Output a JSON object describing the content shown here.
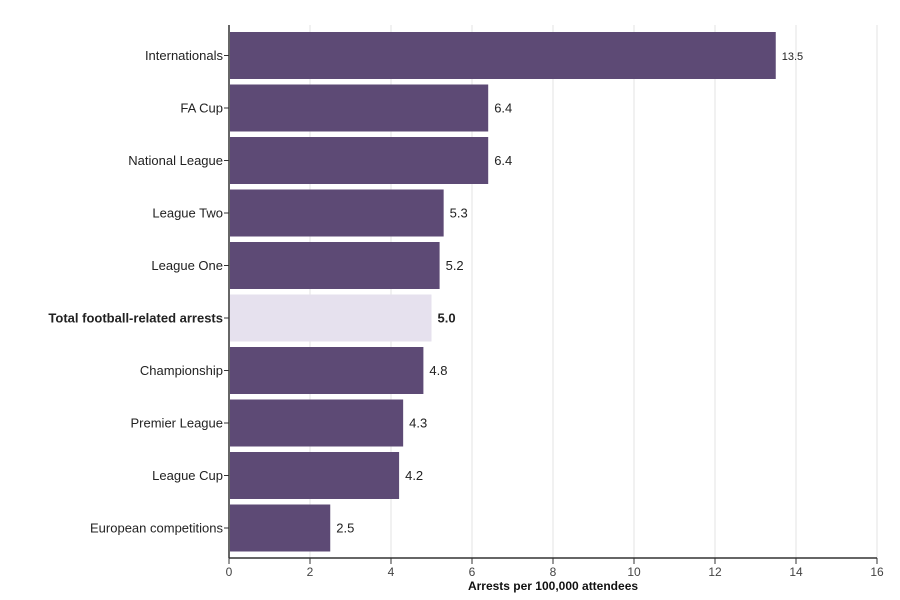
{
  "chart_data": {
    "type": "bar",
    "orientation": "horizontal",
    "title": "",
    "xlabel": "Arrests per 100,000 attendees",
    "ylabel": "",
    "xlim": [
      0,
      16
    ],
    "xticks": [
      0,
      2,
      4,
      6,
      8,
      10,
      12,
      14,
      16
    ],
    "grid": true,
    "categories": [
      "Internationals",
      "FA Cup",
      "National League",
      "League Two",
      "League One",
      "Total football-related arrests",
      "Championship",
      "Premier League",
      "League Cup",
      "European competitions"
    ],
    "values": [
      13.5,
      6.4,
      6.4,
      5.3,
      5.2,
      5.0,
      4.8,
      4.3,
      4.2,
      2.5
    ],
    "value_labels": [
      "13.5",
      "6.4",
      "6.4",
      "5.3",
      "5.2",
      "5.0",
      "4.8",
      "4.3",
      "4.2",
      "2.5"
    ],
    "highlight_index": 5,
    "colors": {
      "bar": "#5d4a75",
      "highlight": "#e6e1ee",
      "grid": "#e3e3e3",
      "axis": "#333333"
    }
  }
}
